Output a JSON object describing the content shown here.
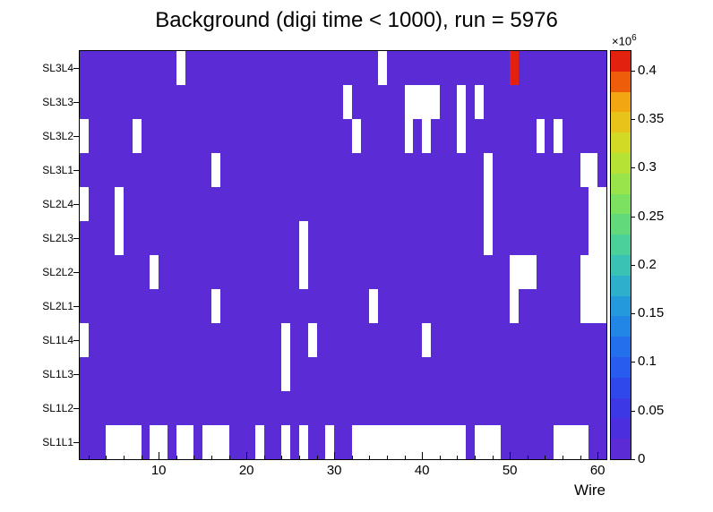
{
  "chart_data": {
    "type": "heatmap",
    "title": "Background (digi time < 1000), run = 5976",
    "xlabel": "Wire",
    "x_ticks": [
      10,
      20,
      30,
      40,
      50,
      60
    ],
    "n_wires": 60,
    "rows": [
      "SL3L4",
      "SL3L3",
      "SL3L2",
      "SL3L1",
      "SL2L4",
      "SL2L3",
      "SL2L2",
      "SL2L1",
      "SL1L4",
      "SL1L3",
      "SL1L2",
      "SL1L1"
    ],
    "base_value": 20000,
    "zmax": 420000,
    "empty_color": "#ffffff",
    "palette": [
      "#5b2bd5",
      "#4b2ede",
      "#3c38e6",
      "#2f48ec",
      "#285cee",
      "#2470ec",
      "#2286e6",
      "#249adc",
      "#2cb0cc",
      "#3ac2b4",
      "#4cd09a",
      "#62da7c",
      "#7ce060",
      "#98e44a",
      "#b6e236",
      "#d2da26",
      "#e8c41a",
      "#f2a612",
      "#ee5e0a",
      "#e2220f"
    ],
    "empty_cells": {
      "SL3L4": [
        12,
        35
      ],
      "SL3L3": [
        31,
        38,
        39,
        40,
        41,
        44,
        46
      ],
      "SL3L2": [
        1,
        7,
        32,
        38,
        40,
        44,
        53,
        55
      ],
      "SL3L1": [
        16,
        47,
        58,
        59
      ],
      "SL2L4": [
        1,
        5,
        47,
        59,
        60
      ],
      "SL2L3": [
        5,
        26,
        47,
        59,
        60
      ],
      "SL2L2": [
        9,
        26,
        50,
        51,
        52,
        58,
        59,
        60
      ],
      "SL2L1": [
        16,
        34,
        50,
        58,
        59,
        60
      ],
      "SL1L4": [
        1,
        24,
        27,
        40
      ],
      "SL1L3": [
        24
      ],
      "SL1L2": [],
      "SL1L1": [
        4,
        5,
        6,
        7,
        9,
        10,
        12,
        13,
        15,
        16,
        17,
        21,
        24,
        26,
        29,
        32,
        33,
        34,
        35,
        36,
        37,
        38,
        39,
        40,
        41,
        42,
        43,
        44,
        46,
        47,
        48,
        55,
        56,
        57,
        58
      ]
    },
    "hot_cells": [
      {
        "row": "SL3L4",
        "wire": 50,
        "value": 400000
      }
    ],
    "colorbar": {
      "multiplier": {
        "base": "×10",
        "exp": "6"
      },
      "ticks": [
        0,
        0.05,
        0.1,
        0.15,
        0.2,
        0.25,
        0.3,
        0.35,
        0.4
      ],
      "range": [
        0,
        0.42
      ]
    }
  }
}
